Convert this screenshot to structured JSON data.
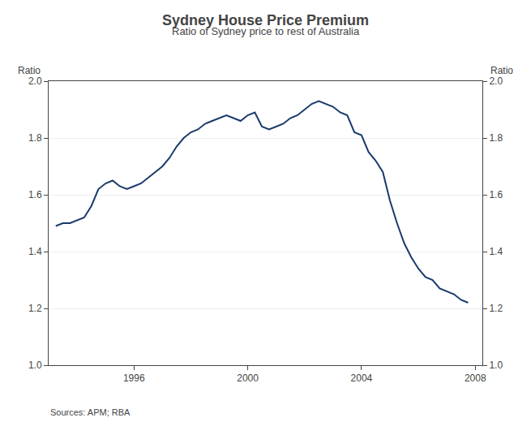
{
  "chart_data": {
    "type": "line",
    "title": "Sydney House Price Premium",
    "subtitle": "Ratio of Sydney price to rest of Australia",
    "ylabel": "Ratio",
    "y2label": "Ratio",
    "source": "Sources: APM; RBA",
    "color": "#1a3a6b",
    "grid": "y",
    "xlim": [
      1993.0,
      2008.25
    ],
    "xticks": [
      1996,
      2000,
      2004,
      2008
    ],
    "ylim": [
      1.0,
      2.0
    ],
    "yticks": [
      {
        "value": 1.0,
        "label": "1.0"
      },
      1.2,
      1.4,
      1.6,
      1.8,
      {
        "value": 2.0,
        "label": "2.0"
      }
    ],
    "y2lim": [
      1.0,
      2.0
    ],
    "y2ticks": [
      {
        "value": 1.0,
        "label": "1.0"
      },
      1.2,
      1.4,
      1.6,
      1.8,
      {
        "value": 2.0,
        "label": "2.0"
      }
    ],
    "x": [
      1993.25,
      1993.5,
      1993.75,
      1994.0,
      1994.25,
      1994.5,
      1994.75,
      1995.0,
      1995.25,
      1995.5,
      1995.75,
      1996.0,
      1996.25,
      1996.5,
      1996.75,
      1997.0,
      1997.25,
      1997.5,
      1997.75,
      1998.0,
      1998.25,
      1998.5,
      1998.75,
      1999.0,
      1999.25,
      1999.5,
      1999.75,
      2000.0,
      2000.25,
      2000.5,
      2000.75,
      2001.0,
      2001.25,
      2001.5,
      2001.75,
      2002.0,
      2002.25,
      2002.5,
      2002.75,
      2003.0,
      2003.25,
      2003.5,
      2003.75,
      2004.0,
      2004.25,
      2004.5,
      2004.75,
      2005.0,
      2005.25,
      2005.5,
      2005.75,
      2006.0,
      2006.25,
      2006.5,
      2006.75,
      2007.0,
      2007.25,
      2007.5,
      2007.75
    ],
    "values": [
      1.49,
      1.5,
      1.5,
      1.51,
      1.52,
      1.56,
      1.62,
      1.64,
      1.65,
      1.63,
      1.62,
      1.63,
      1.64,
      1.66,
      1.68,
      1.7,
      1.73,
      1.77,
      1.8,
      1.82,
      1.83,
      1.85,
      1.86,
      1.87,
      1.88,
      1.87,
      1.86,
      1.88,
      1.89,
      1.84,
      1.83,
      1.84,
      1.85,
      1.87,
      1.88,
      1.9,
      1.92,
      1.93,
      1.92,
      1.91,
      1.89,
      1.88,
      1.82,
      1.81,
      1.75,
      1.72,
      1.68,
      1.58,
      1.5,
      1.43,
      1.38,
      1.34,
      1.31,
      1.3,
      1.27,
      1.26,
      1.25,
      1.23,
      1.22
    ]
  }
}
